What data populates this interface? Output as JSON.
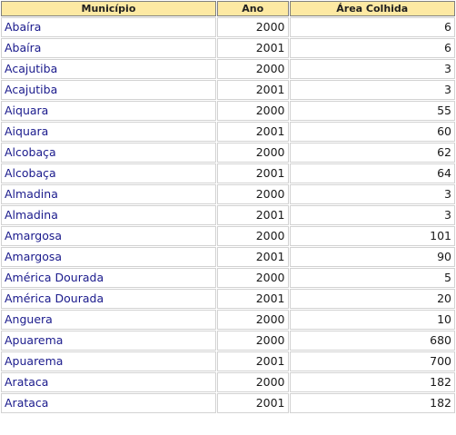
{
  "table": {
    "headers": {
      "municipio": "Município",
      "ano": "Ano",
      "area": "Área Colhida"
    },
    "rows": [
      {
        "municipio": "Abaíra",
        "ano": "2000",
        "area": "6"
      },
      {
        "municipio": "Abaíra",
        "ano": "2001",
        "area": "6"
      },
      {
        "municipio": "Acajutiba",
        "ano": "2000",
        "area": "3"
      },
      {
        "municipio": "Acajutiba",
        "ano": "2001",
        "area": "3"
      },
      {
        "municipio": "Aiquara",
        "ano": "2000",
        "area": "55"
      },
      {
        "municipio": "Aiquara",
        "ano": "2001",
        "area": "60"
      },
      {
        "municipio": "Alcobaça",
        "ano": "2000",
        "area": "62"
      },
      {
        "municipio": "Alcobaça",
        "ano": "2001",
        "area": "64"
      },
      {
        "municipio": "Almadina",
        "ano": "2000",
        "area": "3"
      },
      {
        "municipio": "Almadina",
        "ano": "2001",
        "area": "3"
      },
      {
        "municipio": "Amargosa",
        "ano": "2000",
        "area": "101"
      },
      {
        "municipio": "Amargosa",
        "ano": "2001",
        "area": "90"
      },
      {
        "municipio": "América Dourada",
        "ano": "2000",
        "area": "5"
      },
      {
        "municipio": "América Dourada",
        "ano": "2001",
        "area": "20"
      },
      {
        "municipio": "Anguera",
        "ano": "2000",
        "area": "10"
      },
      {
        "municipio": "Apuarema",
        "ano": "2000",
        "area": "680"
      },
      {
        "municipio": "Apuarema",
        "ano": "2001",
        "area": "700"
      },
      {
        "municipio": "Arataca",
        "ano": "2000",
        "area": "182"
      },
      {
        "municipio": "Arataca",
        "ano": "2001",
        "area": "182"
      }
    ]
  },
  "colors": {
    "header_bg": "#fde9a3",
    "municipio_text": "#1a1a8c",
    "cell_border": "#d2d2d2"
  }
}
